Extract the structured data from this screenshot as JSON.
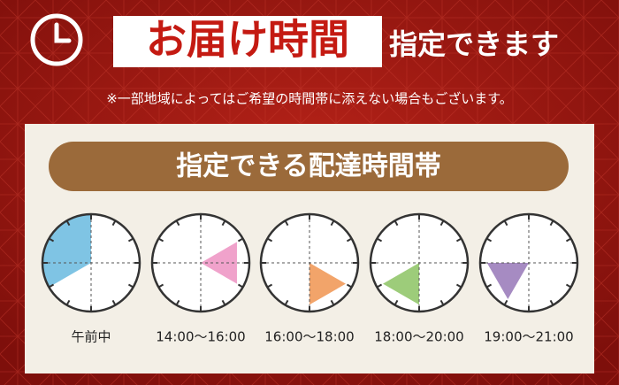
{
  "header": {
    "title": "お届け時間",
    "title_suffix": "指定できます",
    "note": "※一部地域によってはご希望の時間帯に添えない場合もございます。"
  },
  "panel": {
    "banner": "指定できる配達時間帯",
    "slots": [
      {
        "label": "午前中",
        "color": "#7fc4e4"
      },
      {
        "label": "14:00〜16:00",
        "color": "#f0a2cb"
      },
      {
        "label": "16:00〜18:00",
        "color": "#f2a46a"
      },
      {
        "label": "18:00〜20:00",
        "color": "#9dcc7a"
      },
      {
        "label": "19:00〜21:00",
        "color": "#a68bc2"
      }
    ]
  }
}
